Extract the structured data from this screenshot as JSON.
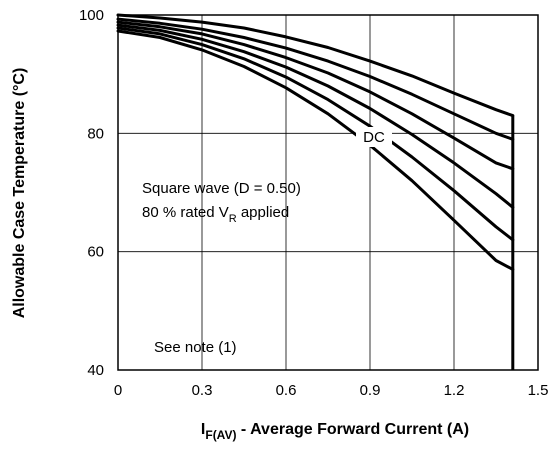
{
  "chart_data": {
    "type": "line",
    "title": "",
    "xlabel": {
      "main": "I",
      "sub": "F(AV)",
      "rest": " - Average Forward Current (A)"
    },
    "ylabel": "Allowable Case Temperature (°C)",
    "xlim": [
      0,
      1.5
    ],
    "ylim": [
      40,
      100
    ],
    "x_ticks": [
      "0",
      "0.3",
      "0.6",
      "0.9",
      "1.2",
      "1.5"
    ],
    "y_ticks": [
      "40",
      "60",
      "80",
      "100"
    ],
    "grid": true,
    "series_color": "#000000",
    "x": [
      0,
      0.15,
      0.3,
      0.45,
      0.6,
      0.75,
      0.9,
      1.05,
      1.2,
      1.35,
      1.41
    ],
    "series": [
      {
        "name": "DC",
        "values": [
          100,
          99.5,
          98.8,
          97.8,
          96.3,
          94.5,
          92.2,
          89.7,
          86.8,
          84.0,
          83.0
        ]
      },
      {
        "values": [
          99.3,
          98.6,
          97.6,
          96.2,
          94.4,
          92.2,
          89.6,
          86.6,
          83.3,
          80.0,
          79.0
        ]
      },
      {
        "values": [
          98.8,
          98.0,
          96.8,
          95.0,
          92.8,
          90.2,
          87.0,
          83.3,
          79.2,
          75.0,
          74.0
        ]
      },
      {
        "values": [
          98.3,
          97.4,
          95.9,
          93.8,
          91.2,
          88.0,
          84.2,
          79.8,
          75.0,
          69.8,
          67.5
        ]
      },
      {
        "values": [
          97.8,
          96.8,
          95.0,
          92.6,
          89.5,
          85.7,
          81.2,
          76.0,
          70.3,
          64.2,
          62.0
        ]
      },
      {
        "values": [
          97.3,
          96.2,
          94.1,
          91.3,
          87.7,
          83.3,
          78.0,
          72.0,
          65.3,
          58.5,
          57.0
        ]
      }
    ],
    "cutoff_x": 1.41,
    "annotations": {
      "dc_label": "DC",
      "square_wave": "Square wave (D = 0.50)",
      "rated_main": "80 % rated V",
      "rated_sub": "R",
      "rated_rest": " applied",
      "note": "See note (1)"
    }
  }
}
